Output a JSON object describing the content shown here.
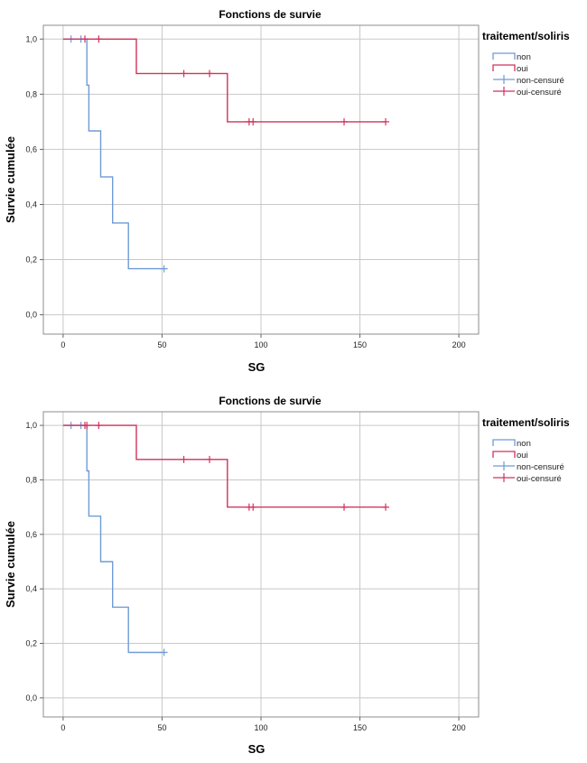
{
  "chart_data": [
    {
      "type": "line",
      "subtype": "kaplan-meier-step",
      "title": "Fonctions de survie",
      "xlabel": "SG",
      "ylabel": "Survie cumulée",
      "xlim": [
        -10,
        210
      ],
      "ylim": [
        -0.07,
        1.05
      ],
      "x_ticks": [
        0,
        50,
        100,
        150,
        200
      ],
      "x_tick_labels": [
        "0",
        "50",
        "100",
        "150",
        "200"
      ],
      "y_ticks": [
        0.0,
        0.2,
        0.4,
        0.6,
        0.8,
        1.0
      ],
      "y_tick_labels": [
        "0,0",
        "0,2",
        "0,4",
        "0,6",
        "0,8",
        "1,0"
      ],
      "grid": true,
      "legend": {
        "title": "traitement/soliris",
        "placement": "right",
        "entries": [
          "non",
          "oui",
          "non-censuré",
          "oui-censuré"
        ]
      },
      "series": [
        {
          "name": "non",
          "color": "#6f9bd6",
          "steps": [
            [
              0,
              1.0
            ],
            [
              12,
              1.0
            ],
            [
              12,
              0.833
            ],
            [
              13,
              0.833
            ],
            [
              13,
              0.667
            ],
            [
              19,
              0.667
            ],
            [
              19,
              0.5
            ],
            [
              25,
              0.5
            ],
            [
              25,
              0.333
            ],
            [
              33,
              0.333
            ],
            [
              33,
              0.167
            ],
            [
              51,
              0.167
            ]
          ],
          "censored": [
            [
              4,
              1.0
            ],
            [
              9,
              1.0
            ],
            [
              51,
              0.167
            ]
          ]
        },
        {
          "name": "oui",
          "color": "#d2325c",
          "steps": [
            [
              0,
              1.0
            ],
            [
              37,
              1.0
            ],
            [
              37,
              0.875
            ],
            [
              83,
              0.875
            ],
            [
              83,
              0.7
            ],
            [
              163,
              0.7
            ]
          ],
          "censored": [
            [
              11,
              1.0
            ],
            [
              18,
              1.0
            ],
            [
              61,
              0.875
            ],
            [
              74,
              0.875
            ],
            [
              94,
              0.7
            ],
            [
              96,
              0.7
            ],
            [
              142,
              0.7
            ],
            [
              163,
              0.7
            ]
          ]
        }
      ]
    },
    {
      "type": "line",
      "subtype": "kaplan-meier-step",
      "title": "Fonctions de survie",
      "xlabel": "SG",
      "ylabel": "Survie cumulée",
      "xlim": [
        -10,
        210
      ],
      "ylim": [
        -0.07,
        1.05
      ],
      "x_ticks": [
        0,
        50,
        100,
        150,
        200
      ],
      "x_tick_labels": [
        "0",
        "50",
        "100",
        "150",
        "200"
      ],
      "y_ticks": [
        0.0,
        0.2,
        0.4,
        0.6,
        0.8,
        1.0
      ],
      "y_tick_labels": [
        "0,0",
        "0,2",
        "0,4",
        "0,6",
        "0,8",
        "1,0"
      ],
      "grid": true,
      "legend": {
        "title": "traitement/soliris",
        "placement": "right",
        "entries": [
          "non",
          "oui",
          "non-censuré",
          "oui-censuré"
        ]
      },
      "series": [
        {
          "name": "non",
          "color": "#6f9bd6",
          "steps": [
            [
              0,
              1.0
            ],
            [
              12,
              1.0
            ],
            [
              12,
              0.833
            ],
            [
              13,
              0.833
            ],
            [
              13,
              0.667
            ],
            [
              19,
              0.667
            ],
            [
              19,
              0.5
            ],
            [
              25,
              0.5
            ],
            [
              25,
              0.333
            ],
            [
              33,
              0.333
            ],
            [
              33,
              0.167
            ],
            [
              51,
              0.167
            ]
          ],
          "censored": [
            [
              4,
              1.0
            ],
            [
              9,
              1.0
            ],
            [
              51,
              0.167
            ]
          ]
        },
        {
          "name": "oui",
          "color": "#d2325c",
          "steps": [
            [
              0,
              1.0
            ],
            [
              37,
              1.0
            ],
            [
              37,
              0.875
            ],
            [
              83,
              0.875
            ],
            [
              83,
              0.7
            ],
            [
              163,
              0.7
            ]
          ],
          "censored": [
            [
              11,
              1.0
            ],
            [
              12,
              1.0
            ],
            [
              18,
              1.0
            ],
            [
              61,
              0.875
            ],
            [
              74,
              0.875
            ],
            [
              94,
              0.7
            ],
            [
              96,
              0.7
            ],
            [
              142,
              0.7
            ],
            [
              163,
              0.7
            ]
          ]
        }
      ]
    }
  ]
}
